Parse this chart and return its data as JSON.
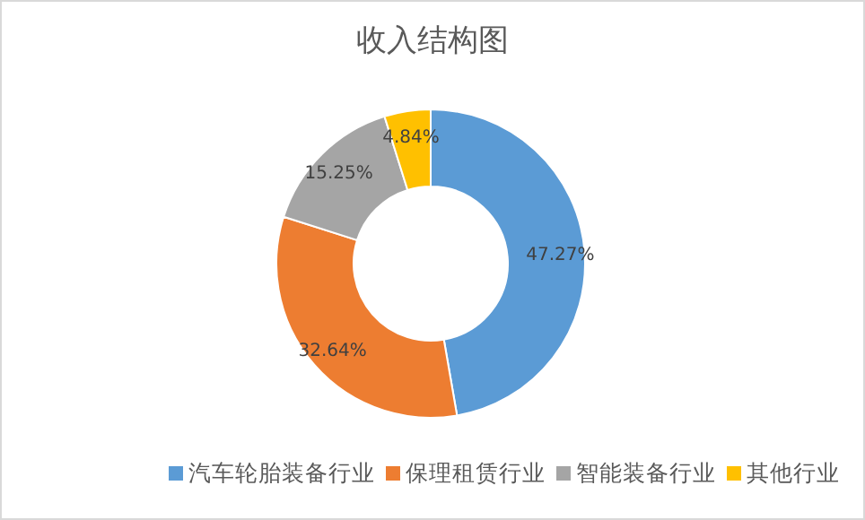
{
  "chart_data": {
    "type": "donut",
    "title": "收入结构图",
    "categories": [
      "汽车轮胎装备行业",
      "保理租赁行业",
      "智能装备行业",
      "其他行业"
    ],
    "values": [
      47.27,
      32.64,
      15.25,
      4.84
    ],
    "colors": [
      "#5b9bd5",
      "#ed7d31",
      "#a5a5a5",
      "#ffc000"
    ],
    "value_labels": [
      "47.27%",
      "32.64%",
      "15.25%",
      "4.84%"
    ],
    "legend": "bottom"
  }
}
